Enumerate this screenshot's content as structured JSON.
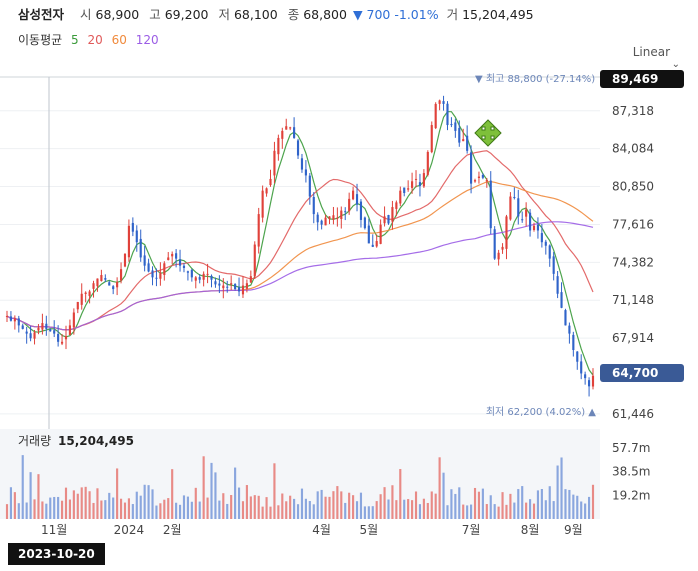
{
  "header": {
    "stock_name": "삼성전자",
    "open_label": "시",
    "open": "68,900",
    "high_label": "고",
    "high": "69,200",
    "low_label": "저",
    "low": "68,100",
    "close_label": "종",
    "close": "68,800",
    "change": "▼ 700 -1.01%",
    "volume_label": "거",
    "volume": "15,204,495"
  },
  "ma_legend": {
    "title": "이동평균",
    "periods": [
      {
        "label": "5",
        "color": "#3a9a3a"
      },
      {
        "label": "20",
        "color": "#e05a5a"
      },
      {
        "label": "60",
        "color": "#f08a3c"
      },
      {
        "label": "120",
        "color": "#9b5de5"
      }
    ]
  },
  "scale_mode": "Linear",
  "selected_date": "2023-10-20",
  "chart_data": {
    "type": "candlestick",
    "price_axis": {
      "ticks": [
        "87,318",
        "84,084",
        "80,850",
        "77,616",
        "74,382",
        "71,148",
        "67,914",
        "61,446"
      ],
      "range": [
        60500,
        90200
      ]
    },
    "last_price_tag": "64,700",
    "high_tag": "89,469",
    "max_label": "▼ 최고 88,800 (-27.14%)",
    "min_label": "최저 62,200 (4.02%) ▲",
    "volume_label": "거래량",
    "volume_value": "15,204,495",
    "volume_axis": {
      "ticks": [
        "57.7m",
        "38.5m",
        "19.2m"
      ],
      "max": 65000000
    },
    "x_labels": [
      {
        "label": "11월",
        "i": 12
      },
      {
        "label": "2024",
        "i": 31
      },
      {
        "label": "2월",
        "i": 42
      },
      {
        "label": "4월",
        "i": 80
      },
      {
        "label": "5월",
        "i": 92
      },
      {
        "label": "7월",
        "i": 118
      },
      {
        "label": "8월",
        "i": 133
      },
      {
        "label": "9월",
        "i": 144
      }
    ],
    "closes": [
      69800,
      69400,
      69600,
      69000,
      68700,
      68300,
      67900,
      68400,
      68800,
      69200,
      68700,
      68500,
      68300,
      67600,
      67600,
      68100,
      69000,
      70100,
      71000,
      71700,
      71800,
      71900,
      72600,
      73000,
      73300,
      72900,
      72400,
      72100,
      72700,
      73800,
      75100,
      77500,
      77000,
      76100,
      74800,
      74100,
      73600,
      73100,
      73000,
      73500,
      74300,
      74800,
      75100,
      74700,
      74100,
      73900,
      73500,
      73100,
      73100,
      72900,
      73400,
      73400,
      72900,
      72500,
      72400,
      72400,
      72300,
      72600,
      72100,
      71900,
      72400,
      72600,
      73200,
      75900,
      78500,
      80500,
      80700,
      81500,
      83900,
      85000,
      85600,
      86000,
      85900,
      85000,
      83500,
      82300,
      81800,
      80000,
      78500,
      77800,
      77600,
      78200,
      78300,
      78400,
      78200,
      78800,
      78700,
      79800,
      80500,
      79300,
      78000,
      77300,
      76000,
      75700,
      76200,
      77600,
      78300,
      77700,
      79100,
      79500,
      80500,
      80300,
      80700,
      81300,
      81500,
      80900,
      82000,
      83800,
      86100,
      87900,
      88200,
      87900,
      86100,
      86100,
      85600,
      84600,
      84900,
      83900,
      81100,
      81400,
      81700,
      81600,
      81400,
      77300,
      74700,
      75200,
      75700,
      78300,
      80000,
      79900,
      78300,
      78000,
      78900,
      77100,
      77500,
      77100,
      76100,
      75800,
      74700,
      73400,
      71700,
      70500,
      69000,
      68300,
      66900,
      65900,
      64900,
      64500,
      63800,
      64700
    ]
  }
}
